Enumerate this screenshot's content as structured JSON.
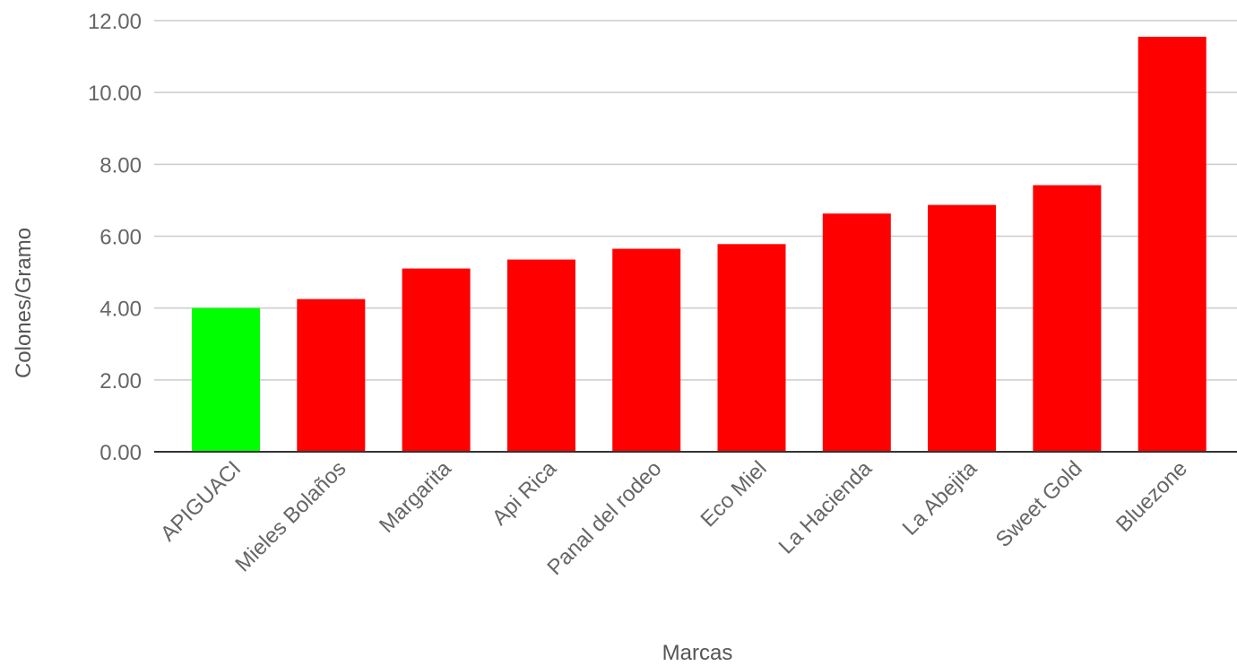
{
  "chart_data": {
    "type": "bar",
    "title": "",
    "xlabel": "Marcas",
    "ylabel": "Colones/Gramo",
    "categories": [
      "APIGUACI",
      "Mieles Bolaños",
      "Margarita",
      "Api Rica",
      "Panal del rodeo",
      "Eco Miel",
      "La Hacienda",
      "La Abejita",
      "Sweet Gold",
      "Bluezone"
    ],
    "values": [
      4.0,
      4.25,
      5.1,
      5.35,
      5.65,
      5.78,
      6.63,
      6.87,
      7.42,
      11.55
    ],
    "bar_colors": [
      "#00ff00",
      "#ff0000",
      "#ff0000",
      "#ff0000",
      "#ff0000",
      "#ff0000",
      "#ff0000",
      "#ff0000",
      "#ff0000",
      "#ff0000"
    ],
    "ylim": [
      0,
      12
    ],
    "yticks": [
      "0.00",
      "2.00",
      "4.00",
      "6.00",
      "8.00",
      "10.00",
      "12.00"
    ],
    "grid": true,
    "legend": "none"
  }
}
